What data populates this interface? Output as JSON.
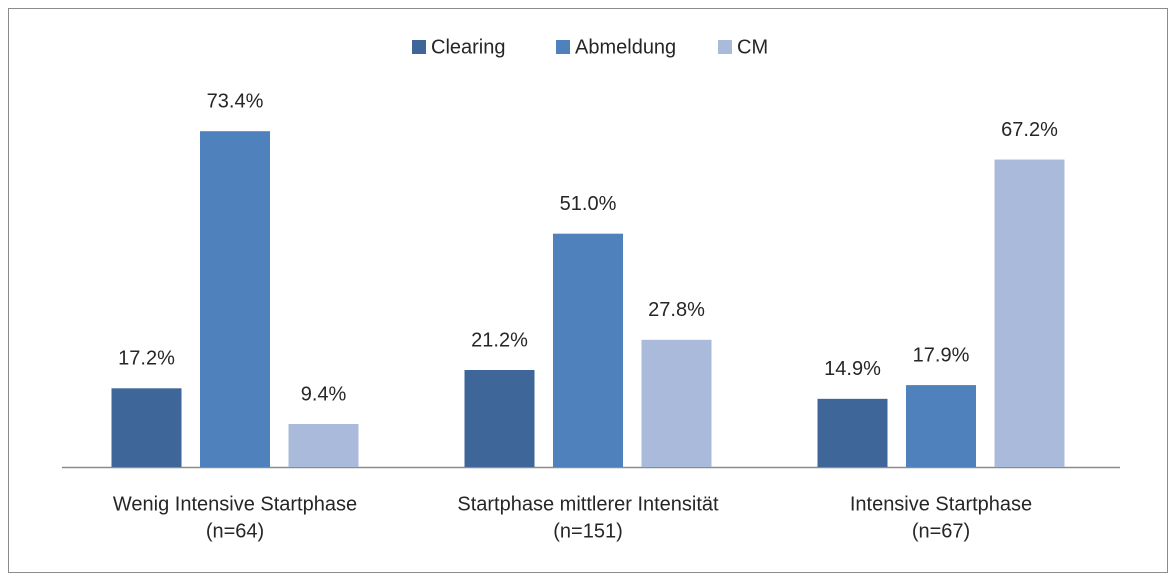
{
  "chart_data": {
    "type": "bar",
    "categories": [
      [
        "Wenig Intensive Startphase",
        "(n=64)"
      ],
      [
        "Startphase mittlerer Intensität",
        "(n=151)"
      ],
      [
        "Intensive Startphase",
        "(n=67)"
      ]
    ],
    "series": [
      {
        "name": "Clearing",
        "color": "#3f6699",
        "values": [
          17.2,
          21.2,
          14.9
        ],
        "value_labels": [
          "17.2%",
          "21.2%",
          "14.9%"
        ]
      },
      {
        "name": "Abmeldung",
        "color": "#4f81bd",
        "values": [
          73.4,
          51.0,
          17.9
        ],
        "value_labels": [
          "73.4%",
          "51.0%",
          "17.9%"
        ]
      },
      {
        "name": "CM",
        "color": "#a9badb",
        "values": [
          9.4,
          27.8,
          67.2
        ],
        "value_labels": [
          "9.4%",
          "27.8%",
          "67.2%"
        ]
      }
    ],
    "ylim": [
      0,
      80
    ],
    "legend": "top"
  }
}
